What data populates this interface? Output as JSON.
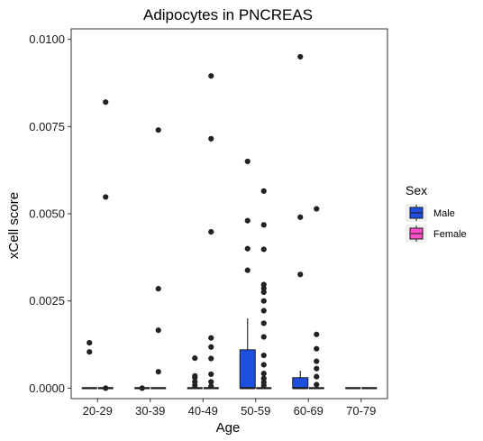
{
  "chart_data": {
    "type": "boxplot",
    "title": "Adipocytes in PNCREAS",
    "xlabel": "Age",
    "ylabel": "xCell score",
    "categories": [
      "20-29",
      "30-39",
      "40-49",
      "50-59",
      "60-69",
      "70-79"
    ],
    "y_ticks": [
      "0.0000",
      "0.0025",
      "0.0050",
      "0.0075",
      "0.0100"
    ],
    "ylim": [
      -0.0003,
      0.0103
    ],
    "legend": {
      "title": "Sex",
      "placement": "right"
    },
    "grid": false,
    "series": [
      {
        "name": "Male",
        "color": "#1f4fe0",
        "boxes": [
          {
            "category": "20-29",
            "q1": 0,
            "median": 0,
            "q3": 0,
            "whisker_low": 0,
            "whisker_high": 0,
            "outliers": [
              0.0013,
              0.00104
            ]
          },
          {
            "category": "30-39",
            "q1": 0,
            "median": 0,
            "q3": 0,
            "whisker_low": 0,
            "whisker_high": 0,
            "outliers": [
              0.0
            ]
          },
          {
            "category": "40-49",
            "q1": 0,
            "median": 0,
            "q3": 0,
            "whisker_low": 0,
            "whisker_high": 0,
            "outliers": [
              0.00086,
              0.00035,
              0.0003,
              0.00018,
              8e-05
            ]
          },
          {
            "category": "50-59",
            "q1": 0,
            "median": 0,
            "q3": 0.0011,
            "whisker_low": 0,
            "whisker_high": 0.002,
            "outliers": [
              0.0065,
              0.0048,
              0.004,
              0.00338
            ]
          },
          {
            "category": "60-69",
            "q1": 0,
            "median": 0,
            "q3": 0.0003,
            "whisker_low": 0,
            "whisker_high": 0.0005,
            "outliers": [
              0.0095,
              0.0049,
              0.00326
            ]
          },
          {
            "category": "70-79",
            "q1": 0,
            "median": 0,
            "q3": 0,
            "whisker_low": 0,
            "whisker_high": 0,
            "outliers": []
          }
        ]
      },
      {
        "name": "Female",
        "color": "#ff4fc8",
        "boxes": [
          {
            "category": "20-29",
            "q1": 0,
            "median": 0,
            "q3": 0,
            "whisker_low": 0,
            "whisker_high": 0,
            "outliers": [
              0.0082,
              0.00548,
              0.0
            ]
          },
          {
            "category": "30-39",
            "q1": 0,
            "median": 0,
            "q3": 0,
            "whisker_low": 0,
            "whisker_high": 0,
            "outliers": [
              0.0074,
              0.00285,
              0.00166,
              0.00047
            ]
          },
          {
            "category": "40-49",
            "q1": 0,
            "median": 0,
            "q3": 0,
            "whisker_low": 0,
            "whisker_high": 0,
            "outliers": [
              0.00895,
              0.00715,
              0.00448,
              0.00144,
              0.00118,
              0.00085,
              0.0004,
              0.00018,
              5e-05
            ]
          },
          {
            "category": "50-59",
            "q1": 0,
            "median": 0,
            "q3": 0,
            "whisker_low": 0,
            "whisker_high": 0,
            "outliers": [
              0.00565,
              0.00468,
              0.00398,
              0.00297,
              0.00286,
              0.00275,
              0.0025,
              0.00222,
              0.00186,
              0.00147,
              0.00094,
              0.00067,
              0.00042,
              0.00028,
              0.00017,
              8e-05
            ]
          },
          {
            "category": "60-69",
            "q1": 0,
            "median": 0,
            "q3": 0,
            "whisker_low": 0,
            "whisker_high": 0,
            "outliers": [
              0.00514,
              0.00154,
              0.00113,
              0.00077,
              0.00056,
              0.00033,
              0.0001
            ]
          },
          {
            "category": "70-79",
            "q1": 0,
            "median": 0,
            "q3": 0,
            "whisker_low": 0,
            "whisker_high": 0,
            "outliers": []
          }
        ]
      }
    ]
  }
}
